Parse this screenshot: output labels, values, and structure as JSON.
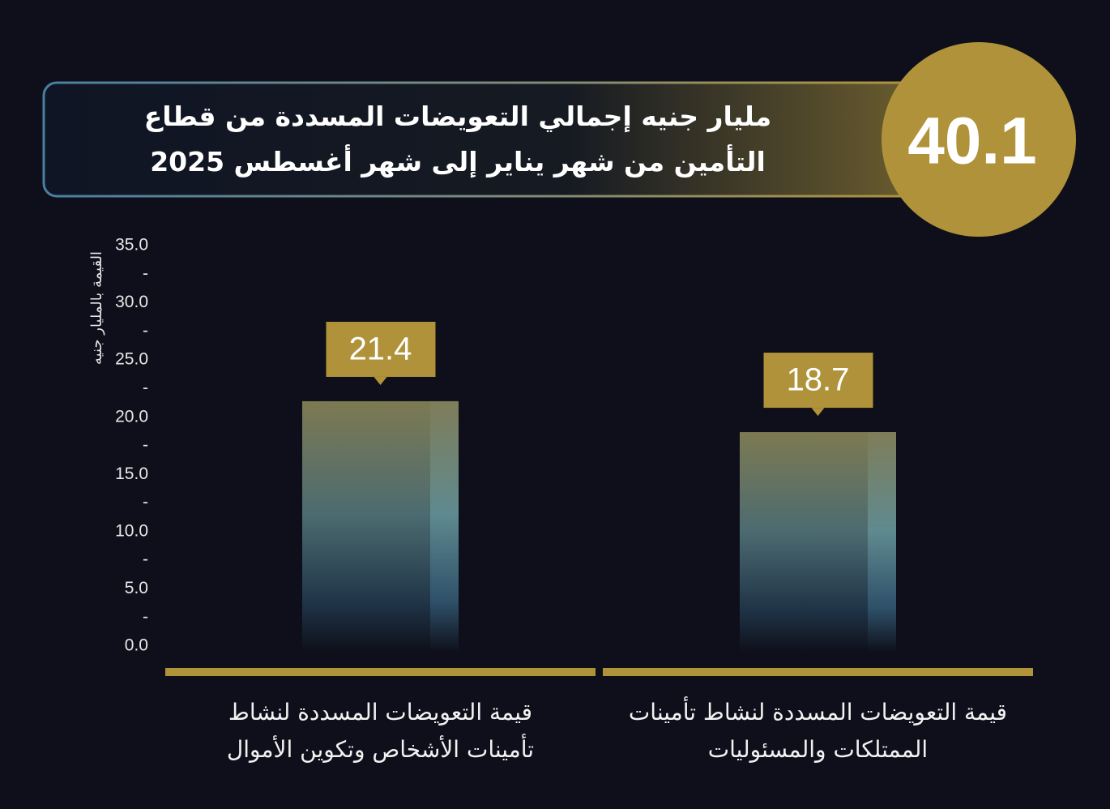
{
  "chart_data": {
    "type": "bar",
    "headline": 40.1,
    "title": "مليار جنيه إجمالي التعويضات المسددة من قطاع التأمين من شهر يناير إلى شهر أغسطس 2025",
    "y_label": "القيمة بالمليار جنيه",
    "categories": [
      "قيمة التعويضات المسددة لنشاط تأمينات الأشخاص وتكوين الأموال",
      "قيمة التعويضات المسددة لنشاط تأمينات الممتلكات والمسئوليات"
    ],
    "values": [
      21.4,
      18.7
    ],
    "color": "#b0923a",
    "ylim": [
      0,
      35
    ],
    "yticks": [
      {
        "value": 0,
        "label": "0.0"
      },
      {
        "value": 2.5,
        "label": "-"
      },
      {
        "value": 5,
        "label": "5.0"
      },
      {
        "value": 7.5,
        "label": "-"
      },
      {
        "value": 10,
        "label": "10.0"
      },
      {
        "value": 12.5,
        "label": "-"
      },
      {
        "value": 15,
        "label": "15.0"
      },
      {
        "value": 17.5,
        "label": "-"
      },
      {
        "value": 20,
        "label": "20.0"
      },
      {
        "value": 22.5,
        "label": "-"
      },
      {
        "value": 25,
        "label": "25.0"
      },
      {
        "value": 27.5,
        "label": "-"
      },
      {
        "value": 30,
        "label": "30.0"
      },
      {
        "value": 32.5,
        "label": "-"
      },
      {
        "value": 35,
        "label": "35.0"
      }
    ]
  }
}
